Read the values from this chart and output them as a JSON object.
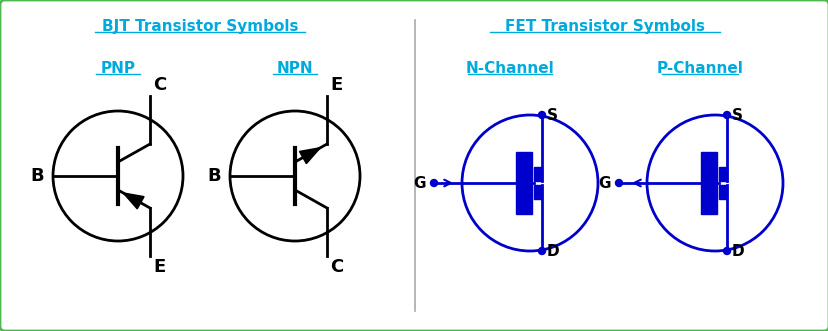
{
  "bg_color": "#ffffff",
  "border_color": "#4db84d",
  "bjt_color": "#000000",
  "fet_color": "#0000cc",
  "fet_fill": "#0000cc",
  "link_color": "#00aadd",
  "title": "BJT Transistor Symbols",
  "title2": "FET Transistor Symbols",
  "pnp_label": "PNP",
  "npn_label": "NPN",
  "nchan_label": "N-Channel",
  "pchan_label": "P-Channel",
  "divider_color": "#aaaaaa"
}
